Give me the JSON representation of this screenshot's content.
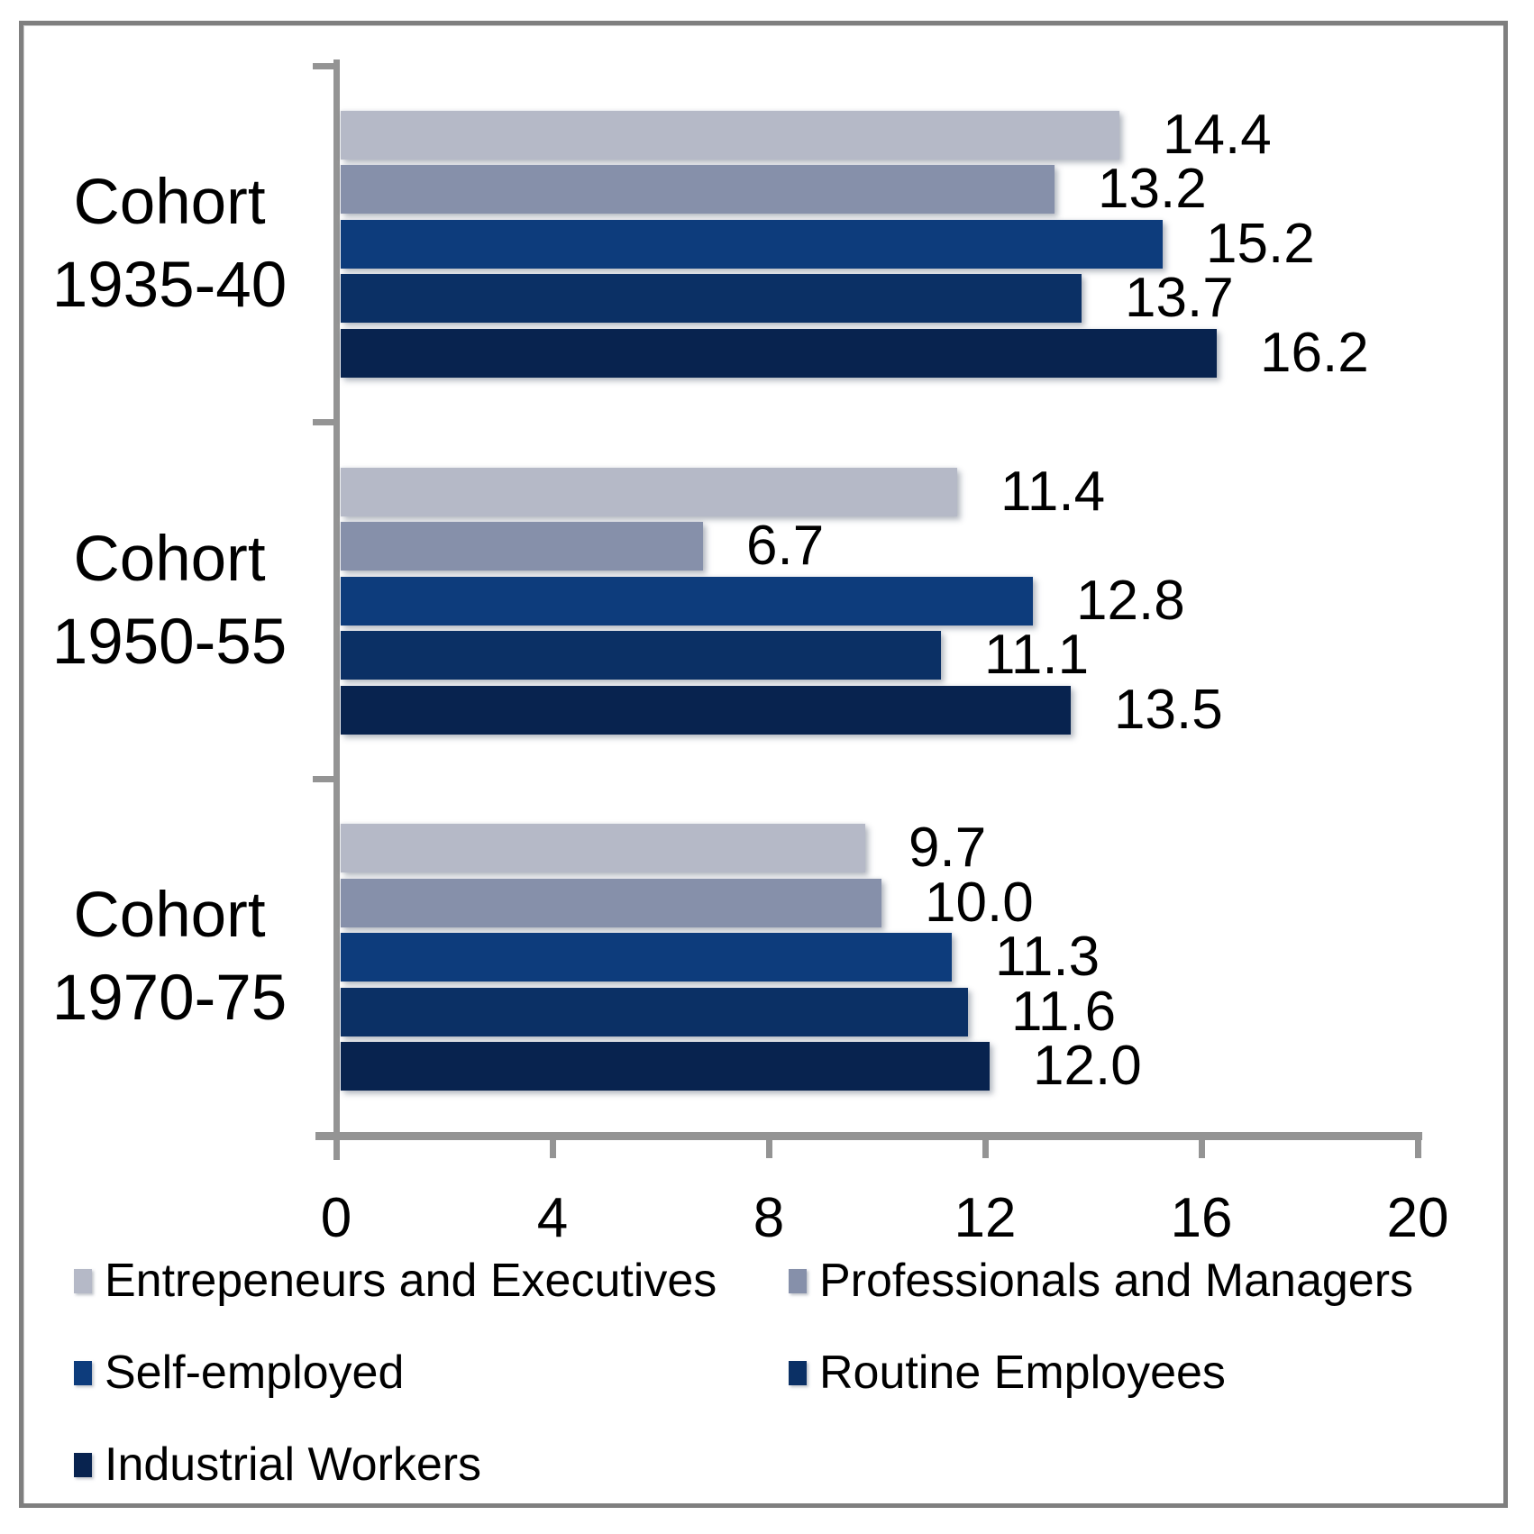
{
  "chart_data": {
    "type": "bar",
    "orientation": "horizontal",
    "title": "",
    "xlabel": "",
    "ylabel": "",
    "categories": [
      "Cohort 1935-40",
      "Cohort 1950-55",
      "Cohort 1970-75"
    ],
    "series": [
      {
        "name": "Entrepeneurs and Executives",
        "color": "#b5b9c7",
        "values": [
          14.4,
          11.4,
          9.7
        ]
      },
      {
        "name": "Professionals and Managers",
        "color": "#8690aa",
        "values": [
          13.2,
          6.7,
          10.0
        ]
      },
      {
        "name": "Self-employed",
        "color": "#0d3c7c",
        "values": [
          15.2,
          12.8,
          11.3
        ]
      },
      {
        "name": "Routine Employees",
        "color": "#0b3065",
        "values": [
          13.7,
          11.1,
          11.6
        ]
      },
      {
        "name": "Industrial Workers",
        "color": "#08234f",
        "values": [
          16.2,
          13.5,
          12.0
        ]
      }
    ],
    "xlim": [
      0,
      20
    ],
    "xticks": [
      0,
      4,
      8,
      12,
      16,
      20
    ],
    "value_label_format": "one decimal place, right of each bar",
    "legend_position": "bottom, two columns",
    "grid": "off",
    "axis_color": "#949494",
    "text_color": "#000000",
    "background_color": "#ffffff"
  }
}
